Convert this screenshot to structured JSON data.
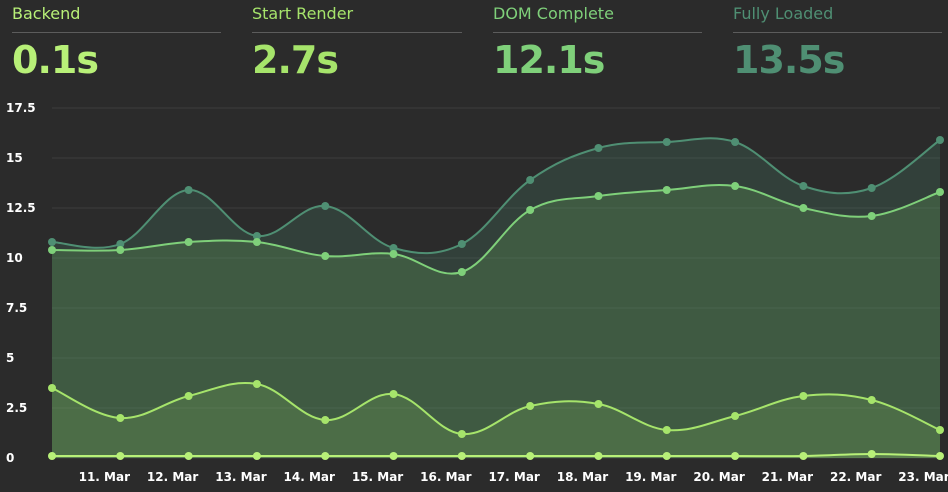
{
  "metrics": [
    {
      "label": "Backend",
      "value": "0.1s",
      "color": "#b8f078"
    },
    {
      "label": "Start Render",
      "value": "2.7s",
      "color": "#a6e46b"
    },
    {
      "label": "DOM Complete",
      "value": "12.1s",
      "color": "#7fd07a"
    },
    {
      "label": "Fully Loaded",
      "value": "13.5s",
      "color": "#4f8f73"
    }
  ],
  "chart_data": {
    "type": "area",
    "categories": [
      "",
      "11. Mar",
      "12. Mar",
      "13. Mar",
      "14. Mar",
      "15. Mar",
      "16. Mar",
      "17. Mar",
      "18. Mar",
      "19. Mar",
      "20. Mar",
      "21. Mar",
      "22. Mar",
      "23. Mar"
    ],
    "series": [
      {
        "name": "Fully Loaded",
        "color": "#4f8f73",
        "values": [
          10.8,
          10.7,
          13.4,
          11.1,
          12.6,
          10.5,
          10.7,
          13.9,
          15.5,
          15.8,
          15.8,
          13.6,
          13.5,
          15.9
        ]
      },
      {
        "name": "DOM Complete",
        "color": "#7fd07a",
        "values": [
          10.4,
          10.4,
          10.8,
          10.8,
          10.1,
          10.2,
          9.3,
          12.4,
          13.1,
          13.4,
          13.6,
          12.5,
          12.1,
          13.3
        ]
      },
      {
        "name": "Start Render",
        "color": "#a6e46b",
        "values": [
          3.5,
          2.0,
          3.1,
          3.7,
          1.9,
          3.2,
          1.2,
          2.6,
          2.7,
          1.4,
          2.1,
          3.1,
          2.9,
          1.4
        ]
      },
      {
        "name": "Backend",
        "color": "#b8f078",
        "values": [
          0.1,
          0.1,
          0.1,
          0.1,
          0.1,
          0.1,
          0.1,
          0.1,
          0.1,
          0.1,
          0.1,
          0.1,
          0.2,
          0.1
        ]
      }
    ],
    "yticks": [
      "0",
      "2.5",
      "5",
      "7.5",
      "10",
      "12.5",
      "15",
      "17.5"
    ],
    "ylim": [
      0,
      17.5
    ],
    "grid": true
  }
}
